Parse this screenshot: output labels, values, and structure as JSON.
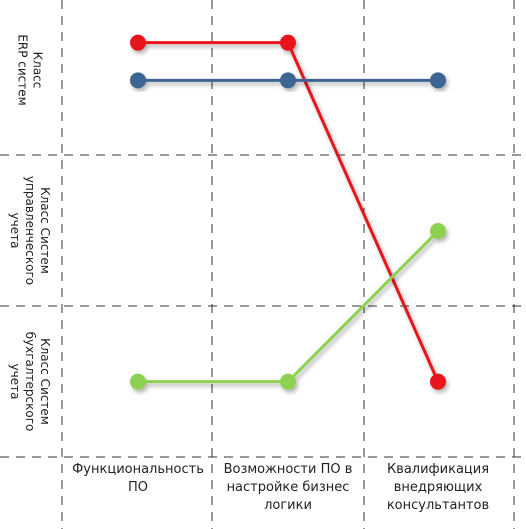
{
  "chart_data": {
    "type": "line",
    "categories": [
      [
        "Функциональность",
        "ПО"
      ],
      [
        "Возможности ПО в",
        "настройке бизнес",
        "логики"
      ],
      [
        "Квалификация",
        "внедряющих",
        "консультантов"
      ]
    ],
    "rows": [
      [
        "Класс",
        "ERP систем"
      ],
      [
        "Класс  Систем",
        "управленческого",
        "учета"
      ],
      [
        "Класс  Систем",
        "бухгалтерского",
        "учета"
      ]
    ],
    "ylim": [
      0,
      3
    ],
    "series": [
      {
        "color": "#e8141c",
        "values": [
          2.75,
          2.75,
          0.5
        ]
      },
      {
        "color": "#3d6593",
        "values": [
          2.5,
          2.5,
          2.5
        ]
      },
      {
        "color": "#8ed04f",
        "values": [
          0.5,
          0.5,
          1.5
        ]
      }
    ],
    "grid": true
  }
}
